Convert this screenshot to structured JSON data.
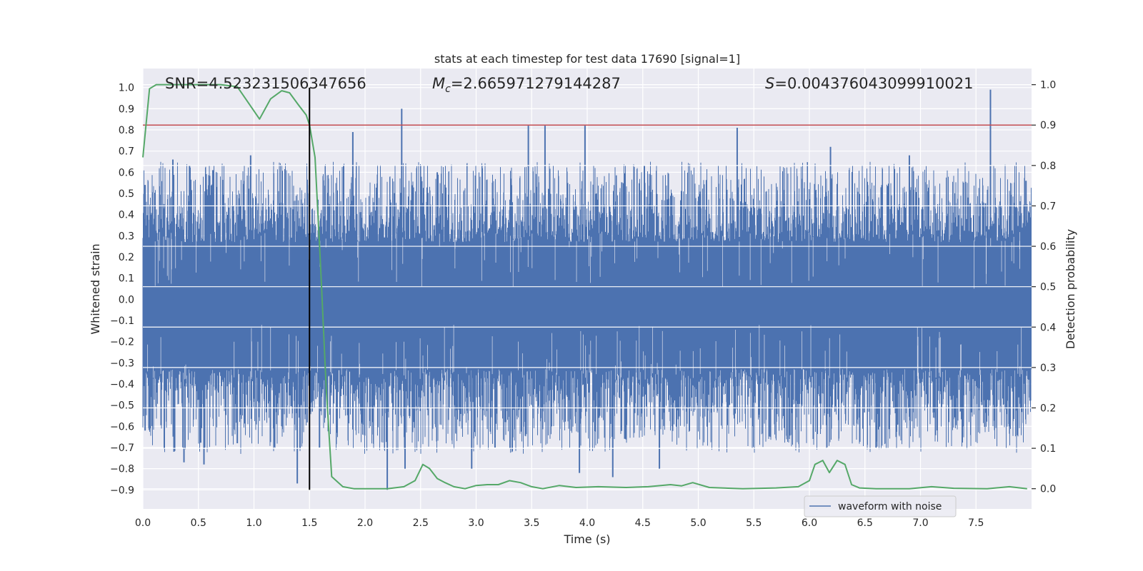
{
  "chart_data": {
    "type": "line",
    "title": "stats at each timestep for test data 17690 [signal=1]",
    "xlabel": "Time (s)",
    "ylabel_left": "Whitened strain",
    "ylabel_right": "Detection probability",
    "xlim": [
      0.0,
      8.0
    ],
    "ylim_left": [
      -0.99,
      1.09
    ],
    "ylim_right": [
      -0.05,
      1.04
    ],
    "x_ticks": [
      "0.0",
      "0.5",
      "1.0",
      "1.5",
      "2.0",
      "2.5",
      "3.0",
      "3.5",
      "4.0",
      "4.5",
      "5.0",
      "5.5",
      "6.0",
      "6.5",
      "7.0",
      "7.5"
    ],
    "y_left_ticks": [
      "1.0",
      "0.9",
      "0.8",
      "0.7",
      "0.6",
      "0.5",
      "0.4",
      "0.3",
      "0.2",
      "0.1",
      "0.0",
      "−0.1",
      "−0.2",
      "−0.3",
      "−0.4",
      "−0.5",
      "−0.6",
      "−0.7",
      "−0.8",
      "−0.9"
    ],
    "y_right_ticks": [
      "1.0",
      "0.9",
      "0.8",
      "0.7",
      "0.6",
      "0.5",
      "0.4",
      "0.3",
      "0.2",
      "0.1",
      "0.0"
    ],
    "annotations": {
      "snr": "SNR=4.523231506347656",
      "mc_symbol": "M",
      "mc_sub": "c",
      "mc_value": "=2.665971279144287",
      "s_symbol": "S",
      "s_value": "=0.004376043099910021"
    },
    "threshold": {
      "axis": "right",
      "value": 0.9
    },
    "marker_line": {
      "x": 1.5,
      "y_range": [
        -0.9,
        1.0
      ]
    },
    "legend": [
      {
        "label": "waveform with noise",
        "color": "#4c72b0"
      }
    ],
    "series": [
      {
        "name": "waveform with noise",
        "axis": "left",
        "kind": "noise_band",
        "color": "#4c72b0",
        "dense_band": [
          -0.33,
          0.27
        ],
        "peaks_positive": [
          [
            0.02,
            0.54
          ],
          [
            0.27,
            0.66
          ],
          [
            0.42,
            0.63
          ],
          [
            0.63,
            0.61
          ],
          [
            0.97,
            0.68
          ],
          [
            1.48,
            0.54
          ],
          [
            1.89,
            0.79
          ],
          [
            2.33,
            0.9
          ],
          [
            2.65,
            0.6
          ],
          [
            3.47,
            0.82
          ],
          [
            3.62,
            0.82
          ],
          [
            3.98,
            0.82
          ],
          [
            5.35,
            0.81
          ],
          [
            6.19,
            0.72
          ],
          [
            6.9,
            0.68
          ],
          [
            7.63,
            0.99
          ],
          [
            7.95,
            0.56
          ]
        ],
        "peaks_negative": [
          [
            0.02,
            -0.62
          ],
          [
            0.28,
            -0.72
          ],
          [
            0.37,
            -0.77
          ],
          [
            0.55,
            -0.78
          ],
          [
            0.85,
            -0.68
          ],
          [
            1.39,
            -0.87
          ],
          [
            1.59,
            -0.7
          ],
          [
            2.2,
            -0.9
          ],
          [
            2.36,
            -0.8
          ],
          [
            2.96,
            -0.8
          ],
          [
            3.17,
            -0.7
          ],
          [
            3.93,
            -0.82
          ],
          [
            4.23,
            -0.84
          ],
          [
            4.65,
            -0.8
          ],
          [
            5.65,
            -0.65
          ],
          [
            6.6,
            -0.7
          ],
          [
            7.8,
            -0.6
          ]
        ]
      },
      {
        "name": "detection probability",
        "axis": "right",
        "kind": "line",
        "color": "#55a868",
        "x": [
          0.0,
          0.06,
          0.12,
          0.2,
          0.3,
          0.5,
          0.7,
          0.85,
          0.95,
          1.05,
          1.15,
          1.25,
          1.32,
          1.4,
          1.47,
          1.5,
          1.55,
          1.6,
          1.65,
          1.7,
          1.8,
          1.9,
          2.2,
          2.35,
          2.45,
          2.52,
          2.58,
          2.65,
          2.72,
          2.8,
          2.9,
          3.0,
          3.1,
          3.2,
          3.3,
          3.4,
          3.5,
          3.6,
          3.75,
          3.9,
          4.1,
          4.35,
          4.55,
          4.75,
          4.85,
          4.95,
          5.1,
          5.4,
          5.7,
          5.9,
          6.0,
          6.05,
          6.12,
          6.18,
          6.25,
          6.32,
          6.38,
          6.45,
          6.6,
          6.9,
          7.1,
          7.3,
          7.6,
          7.8,
          7.96
        ],
        "y": [
          0.82,
          0.99,
          1.0,
          1.0,
          1.0,
          1.0,
          1.0,
          0.995,
          0.955,
          0.915,
          0.965,
          0.985,
          0.98,
          0.95,
          0.925,
          0.9,
          0.82,
          0.55,
          0.25,
          0.03,
          0.005,
          0.0,
          0.0,
          0.005,
          0.02,
          0.06,
          0.05,
          0.025,
          0.015,
          0.005,
          0.0,
          0.008,
          0.01,
          0.01,
          0.02,
          0.015,
          0.005,
          0.0,
          0.008,
          0.003,
          0.005,
          0.003,
          0.005,
          0.01,
          0.007,
          0.015,
          0.003,
          0.0,
          0.002,
          0.005,
          0.02,
          0.06,
          0.07,
          0.04,
          0.07,
          0.06,
          0.01,
          0.002,
          0.0,
          0.0,
          0.005,
          0.001,
          0.0,
          0.005,
          0.0
        ]
      }
    ]
  }
}
